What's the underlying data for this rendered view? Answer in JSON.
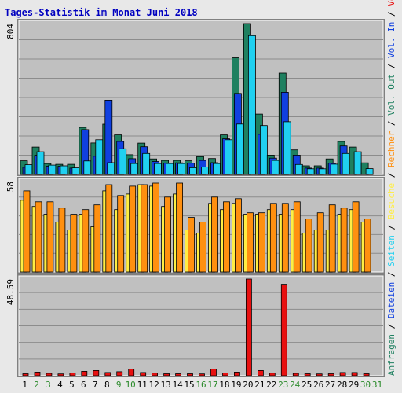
{
  "chart_data": {
    "type": "bar",
    "title": "Tages-Statistik im Monat Juni 2018",
    "x": [
      "1",
      "2",
      "3",
      "4",
      "5",
      "6",
      "7",
      "8",
      "9",
      "10",
      "11",
      "12",
      "13",
      "14",
      "15",
      "16",
      "17",
      "18",
      "19",
      "20",
      "21",
      "22",
      "23",
      "24",
      "25",
      "26",
      "27",
      "28",
      "29",
      "30",
      "31"
    ],
    "weekend_days": [
      "2",
      "3",
      "9",
      "10",
      "16",
      "17",
      "23",
      "24",
      "30",
      "31"
    ],
    "colors": {
      "anfragen": "#1f8060",
      "dateien": "#1040e0",
      "seiten": "#20d0f0",
      "besuche": "#ffee44",
      "rechner": "#ff9010",
      "volumen": "#e81010",
      "weekday_label": "#000000",
      "weekend_label": "#2a8a2a"
    },
    "panels": [
      {
        "id": "top",
        "ymax_label": "804",
        "ymax": 804,
        "series": [
          {
            "key": "anfragen",
            "values": [
              73,
              146,
              58,
              54,
              54,
              251,
              168,
              268,
              211,
              105,
              167,
              83,
              75,
              75,
              73,
              95,
              85,
              211,
              622,
              804,
              322,
              103,
              540,
              131,
              46,
              46,
              83,
              176,
              146,
              62,
              0
            ]
          },
          {
            "key": "dateien",
            "values": [
              38,
              102,
              44,
              44,
              34,
              239,
              97,
              396,
              176,
              84,
              148,
              69,
              60,
              62,
              60,
              75,
              63,
              190,
              432,
              0,
              214,
              87,
              438,
              103,
              34,
              34,
              60,
              152,
              0,
              0,
              0
            ]
          },
          {
            "key": "seiten",
            "values": [
              52,
              121,
              50,
              46,
              35,
              72,
              185,
              63,
              137,
              58,
              112,
              58,
              58,
              58,
              36,
              40,
              58,
              185,
              269,
              740,
              261,
              75,
              281,
              53,
              30,
              30,
              55,
              112,
              121,
              31,
              0
            ]
          }
        ]
      },
      {
        "id": "mid",
        "ymax_label": "58",
        "ymax": 58,
        "series": [
          {
            "key": "besuche",
            "values": [
              46,
              42,
              37,
              32,
              27,
              37,
              29,
              52,
              40,
              50,
              56,
              55,
              42,
              50,
              27,
              25,
              44,
              40,
              44,
              37,
              37,
              40,
              37,
              40,
              25,
              27,
              27,
              37,
              40,
              32,
              0
            ]
          },
          {
            "key": "rechner",
            "values": [
              52,
              45,
              45,
              41,
              37,
              40,
              43,
              56,
              49,
              55,
              56,
              57,
              48,
              57,
              35,
              32,
              48,
              45,
              47,
              38,
              38,
              44,
              44,
              45,
              34,
              38,
              43,
              41,
              45,
              34,
              0
            ]
          }
        ]
      },
      {
        "id": "bot",
        "ymax_label": "48.59",
        "ymax": 48.59,
        "series": [
          {
            "key": "volumen",
            "values": [
              1.0,
              1.8,
              1.2,
              0.9,
              1.4,
              2.2,
              2.6,
              1.6,
              2.0,
              3.4,
              1.6,
              1.3,
              1.0,
              1.0,
              1.0,
              0.9,
              3.4,
              1.4,
              1.8,
              48.59,
              2.6,
              1.3,
              46.0,
              1.2,
              1.0,
              0.9,
              1.0,
              1.6,
              1.6,
              1.0,
              0
            ]
          }
        ]
      }
    ],
    "side_legend": [
      {
        "text": "Anfragen",
        "key": "anfragen"
      },
      {
        "text": "/",
        "key": "sep"
      },
      {
        "text": "Dateien",
        "key": "dateien"
      },
      {
        "text": "/",
        "key": "sep"
      },
      {
        "text": "Seiten",
        "key": "seiten"
      },
      {
        "text": "/",
        "key": "sep"
      },
      {
        "text": "Besuche",
        "key": "besuche"
      },
      {
        "text": "/",
        "key": "sep"
      },
      {
        "text": "Rechner",
        "key": "rechner"
      },
      {
        "text": "/",
        "key": "sep"
      },
      {
        "text": "Vol. Out",
        "key": "anfragen"
      },
      {
        "text": "/",
        "key": "sep"
      },
      {
        "text": "Vol. In",
        "key": "dateien"
      },
      {
        "text": "/",
        "key": "sep"
      },
      {
        "text": "Volumen",
        "key": "volumen"
      }
    ]
  }
}
